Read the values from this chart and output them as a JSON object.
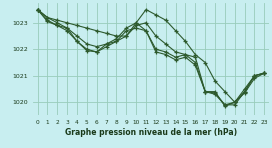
{
  "title": "Graphe pression niveau de la mer (hPa)",
  "bg_color": "#c8eef0",
  "grid_color": "#99ccbb",
  "line_color": "#2d5a2d",
  "marker": "+",
  "xlim": [
    -0.5,
    23.5
  ],
  "ylim": [
    1019.5,
    1023.75
  ],
  "yticks": [
    1020,
    1021,
    1022,
    1023
  ],
  "xticks": [
    0,
    1,
    2,
    3,
    4,
    5,
    6,
    7,
    8,
    9,
    10,
    11,
    12,
    13,
    14,
    15,
    16,
    17,
    18,
    19,
    20,
    21,
    22,
    23
  ],
  "series": [
    [
      1023.5,
      1023.2,
      1023.1,
      1023.0,
      1022.9,
      1022.8,
      1022.7,
      1022.6,
      1022.5,
      1022.5,
      1023.0,
      1023.5,
      1023.3,
      1023.1,
      1022.7,
      1022.3,
      1021.8,
      1021.5,
      1020.8,
      1020.4,
      1020.0,
      1020.5,
      1021.0,
      1021.1
    ],
    [
      1023.5,
      1023.2,
      1023.0,
      1022.8,
      1022.5,
      1022.2,
      1022.1,
      1022.2,
      1022.3,
      1022.5,
      1022.9,
      1023.0,
      1022.5,
      1022.2,
      1021.9,
      1021.8,
      1021.7,
      1020.4,
      1020.4,
      1019.85,
      1020.0,
      1020.35,
      1020.9,
      1021.1
    ],
    [
      1023.5,
      1023.1,
      1022.9,
      1022.8,
      1022.3,
      1022.0,
      1021.9,
      1022.2,
      1022.4,
      1022.8,
      1023.0,
      1022.7,
      1022.0,
      1021.9,
      1021.7,
      1021.8,
      1021.5,
      1020.4,
      1020.35,
      1019.9,
      1020.0,
      1020.4,
      1021.0,
      1021.1
    ],
    [
      1023.5,
      1023.05,
      1022.9,
      1022.7,
      1022.3,
      1021.95,
      1021.9,
      1022.1,
      1022.3,
      1022.7,
      1022.8,
      1022.7,
      1021.9,
      1021.8,
      1021.6,
      1021.7,
      1021.4,
      1020.4,
      1020.3,
      1019.9,
      1019.9,
      1020.4,
      1021.0,
      1021.1
    ]
  ]
}
